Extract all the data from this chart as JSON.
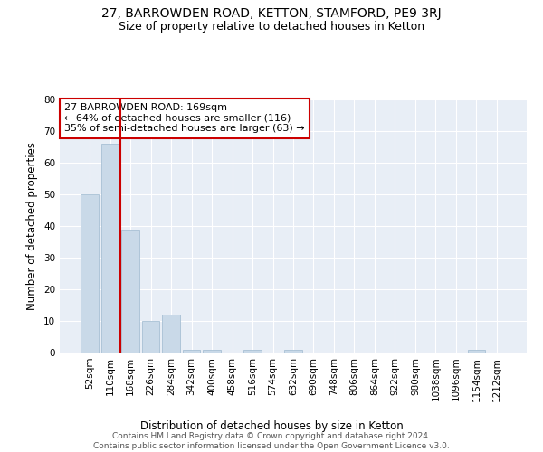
{
  "title": "27, BARROWDEN ROAD, KETTON, STAMFORD, PE9 3RJ",
  "subtitle": "Size of property relative to detached houses in Ketton",
  "xlabel": "Distribution of detached houses by size in Ketton",
  "ylabel": "Number of detached properties",
  "categories": [
    "52sqm",
    "110sqm",
    "168sqm",
    "226sqm",
    "284sqm",
    "342sqm",
    "400sqm",
    "458sqm",
    "516sqm",
    "574sqm",
    "632sqm",
    "690sqm",
    "748sqm",
    "806sqm",
    "864sqm",
    "922sqm",
    "980sqm",
    "1038sqm",
    "1096sqm",
    "1154sqm",
    "1212sqm"
  ],
  "values": [
    50,
    66,
    39,
    10,
    12,
    1,
    1,
    0,
    1,
    0,
    1,
    0,
    0,
    0,
    0,
    0,
    0,
    0,
    0,
    1,
    0
  ],
  "bar_color": "#c9d9e8",
  "bar_edgecolor": "#a8c0d4",
  "vline_color": "#cc0000",
  "annotation_text": "27 BARROWDEN ROAD: 169sqm\n← 64% of detached houses are smaller (116)\n35% of semi-detached houses are larger (63) →",
  "annotation_box_edgecolor": "#cc0000",
  "ylim": [
    0,
    80
  ],
  "yticks": [
    0,
    10,
    20,
    30,
    40,
    50,
    60,
    70,
    80
  ],
  "background_color": "#e8eef6",
  "footer": "Contains HM Land Registry data © Crown copyright and database right 2024.\nContains public sector information licensed under the Open Government Licence v3.0.",
  "title_fontsize": 10,
  "subtitle_fontsize": 9,
  "xlabel_fontsize": 8.5,
  "ylabel_fontsize": 8.5,
  "tick_fontsize": 7.5,
  "annotation_fontsize": 8,
  "footer_fontsize": 6.5
}
